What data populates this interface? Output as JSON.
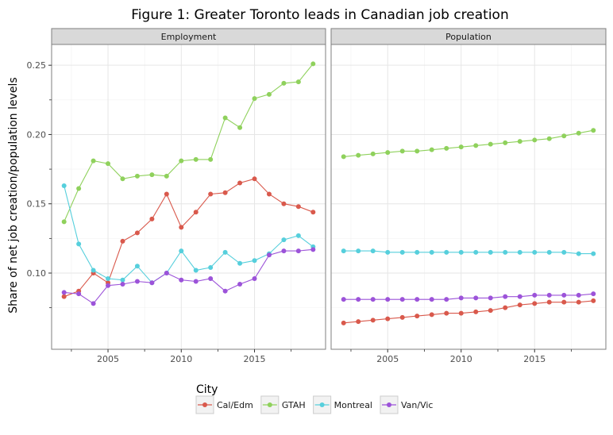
{
  "chart_data": {
    "type": "line",
    "title": "Figure 1: Greater Toronto leads in Canadian job creation",
    "ylabel": "Share of net job creation/population levels",
    "xlabel": "",
    "legend_title": "City",
    "legend_position": "bottom",
    "x": [
      2002,
      2003,
      2004,
      2005,
      2006,
      2007,
      2008,
      2009,
      2010,
      2011,
      2012,
      2013,
      2014,
      2015,
      2016,
      2017,
      2018,
      2019
    ],
    "xlim": [
      2001.15,
      2019.85
    ],
    "ylim": [
      0.045,
      0.265
    ],
    "x_ticks": [
      2005,
      2010,
      2015
    ],
    "x_tick_labels": [
      "2005",
      "2010",
      "2015"
    ],
    "y_ticks": [
      0.1,
      0.15,
      0.2,
      0.25
    ],
    "y_tick_labels": [
      "0.10",
      "0.15",
      "0.20",
      "0.25"
    ],
    "grid": true,
    "panels": [
      {
        "label": "Employment",
        "series": [
          {
            "name": "Cal/Edm",
            "color": "#d9594c",
            "values": [
              0.083,
              0.087,
              0.1,
              0.093,
              0.123,
              0.129,
              0.139,
              0.157,
              0.133,
              0.144,
              0.157,
              0.158,
              0.165,
              0.168,
              0.157,
              0.15,
              0.148,
              0.144
            ]
          },
          {
            "name": "GTAH",
            "color": "#8fd15c",
            "values": [
              0.137,
              0.161,
              0.181,
              0.179,
              0.168,
              0.17,
              0.171,
              0.17,
              0.181,
              0.182,
              0.182,
              0.212,
              0.205,
              0.226,
              0.229,
              0.237,
              0.238,
              0.251
            ]
          },
          {
            "name": "Montreal",
            "color": "#56cfdc",
            "values": [
              0.163,
              0.121,
              0.102,
              0.096,
              0.095,
              0.105,
              0.093,
              0.1,
              0.116,
              0.102,
              0.104,
              0.115,
              0.107,
              0.109,
              0.114,
              0.124,
              0.127,
              0.119
            ]
          },
          {
            "name": "Van/Vic",
            "color": "#9c53d9",
            "values": [
              0.086,
              0.085,
              0.078,
              0.091,
              0.092,
              0.094,
              0.093,
              0.1,
              0.095,
              0.094,
              0.096,
              0.087,
              0.092,
              0.096,
              0.113,
              0.116,
              0.116,
              0.117
            ]
          }
        ]
      },
      {
        "label": "Population",
        "series": [
          {
            "name": "Cal/Edm",
            "color": "#d9594c",
            "values": [
              0.064,
              0.065,
              0.066,
              0.067,
              0.068,
              0.069,
              0.07,
              0.071,
              0.071,
              0.072,
              0.073,
              0.075,
              0.077,
              0.078,
              0.079,
              0.079,
              0.079,
              0.08
            ]
          },
          {
            "name": "GTAH",
            "color": "#8fd15c",
            "values": [
              0.184,
              0.185,
              0.186,
              0.187,
              0.188,
              0.188,
              0.189,
              0.19,
              0.191,
              0.192,
              0.193,
              0.194,
              0.195,
              0.196,
              0.197,
              0.199,
              0.201,
              0.203
            ]
          },
          {
            "name": "Montreal",
            "color": "#56cfdc",
            "values": [
              0.116,
              0.116,
              0.116,
              0.115,
              0.115,
              0.115,
              0.115,
              0.115,
              0.115,
              0.115,
              0.115,
              0.115,
              0.115,
              0.115,
              0.115,
              0.115,
              0.114,
              0.114
            ]
          },
          {
            "name": "Van/Vic",
            "color": "#9c53d9",
            "values": [
              0.081,
              0.081,
              0.081,
              0.081,
              0.081,
              0.081,
              0.081,
              0.081,
              0.082,
              0.082,
              0.082,
              0.083,
              0.083,
              0.084,
              0.084,
              0.084,
              0.084,
              0.085
            ]
          }
        ]
      }
    ],
    "legend": [
      {
        "name": "Cal/Edm",
        "color": "#d9594c"
      },
      {
        "name": "GTAH",
        "color": "#8fd15c"
      },
      {
        "name": "Montreal",
        "color": "#56cfdc"
      },
      {
        "name": "Van/Vic",
        "color": "#9c53d9"
      }
    ]
  }
}
